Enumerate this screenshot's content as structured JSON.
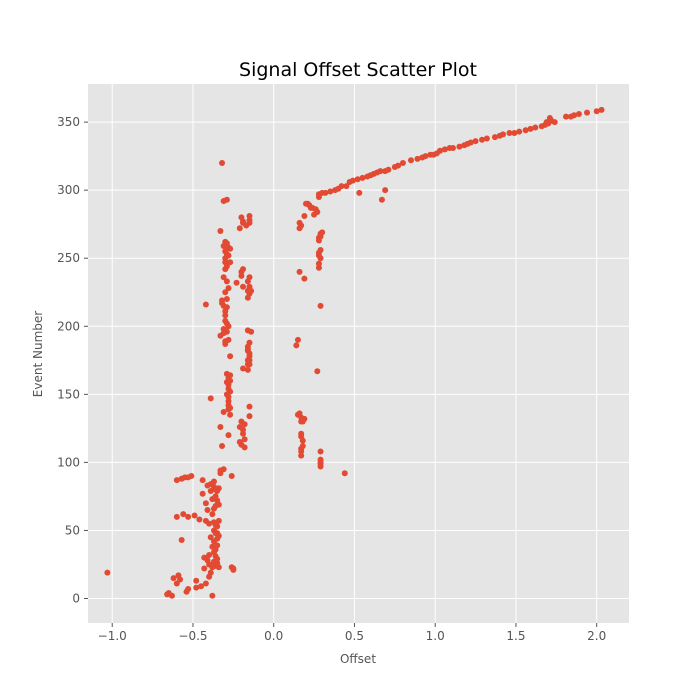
{
  "chart_data": {
    "type": "scatter",
    "title": "Signal Offset Scatter Plot",
    "xlabel": "Offset",
    "ylabel": "Event Number",
    "xlim": [
      -1.15,
      2.2
    ],
    "ylim": [
      -18,
      378
    ],
    "xticks": [
      -1.0,
      -0.5,
      0.0,
      0.5,
      1.0,
      1.5,
      2.0
    ],
    "xtick_labels": [
      "−1.0",
      "−0.5",
      "0.0",
      "0.5",
      "1.0",
      "1.5",
      "2.0"
    ],
    "yticks": [
      0,
      50,
      100,
      150,
      200,
      250,
      300,
      350
    ],
    "ytick_labels": [
      "0",
      "50",
      "100",
      "150",
      "200",
      "250",
      "300",
      "350"
    ],
    "grid": true,
    "style": "ggplot",
    "colors": {
      "background": "#e5e5e5",
      "grid": "#ffffff",
      "marker": "#e24a33"
    },
    "series": [
      {
        "points": [
          [
            -1.03,
            19
          ],
          [
            -0.66,
            3
          ],
          [
            -0.65,
            4
          ],
          [
            -0.63,
            2
          ],
          [
            -0.62,
            15
          ],
          [
            -0.6,
            11
          ],
          [
            -0.6,
            60
          ],
          [
            -0.6,
            87
          ],
          [
            -0.59,
            17
          ],
          [
            -0.58,
            14
          ],
          [
            -0.57,
            43
          ],
          [
            -0.57,
            88
          ],
          [
            -0.56,
            62
          ],
          [
            -0.55,
            89
          ],
          [
            -0.54,
            5
          ],
          [
            -0.53,
            7
          ],
          [
            -0.53,
            60
          ],
          [
            -0.53,
            89
          ],
          [
            -0.51,
            90
          ],
          [
            -0.49,
            61
          ],
          [
            -0.48,
            8
          ],
          [
            -0.48,
            13
          ],
          [
            -0.46,
            58
          ],
          [
            -0.45,
            9
          ],
          [
            -0.44,
            87
          ],
          [
            -0.44,
            77
          ],
          [
            -0.43,
            22
          ],
          [
            -0.43,
            30
          ],
          [
            -0.42,
            216
          ],
          [
            -0.42,
            57
          ],
          [
            -0.42,
            70
          ],
          [
            -0.42,
            11
          ],
          [
            -0.41,
            28
          ],
          [
            -0.41,
            83
          ],
          [
            -0.41,
            65
          ],
          [
            -0.4,
            25
          ],
          [
            -0.4,
            16
          ],
          [
            -0.4,
            55
          ],
          [
            -0.4,
            32
          ],
          [
            -0.39,
            147
          ],
          [
            -0.39,
            84
          ],
          [
            -0.39,
            45
          ],
          [
            -0.39,
            79
          ],
          [
            -0.39,
            19
          ],
          [
            -0.38,
            38
          ],
          [
            -0.38,
            23
          ],
          [
            -0.38,
            73
          ],
          [
            -0.38,
            62
          ],
          [
            -0.38,
            2
          ],
          [
            -0.37,
            50
          ],
          [
            -0.37,
            82
          ],
          [
            -0.37,
            56
          ],
          [
            -0.37,
            86
          ],
          [
            -0.37,
            27
          ],
          [
            -0.37,
            42
          ],
          [
            -0.37,
            66
          ],
          [
            -0.37,
            34
          ],
          [
            -0.36,
            48
          ],
          [
            -0.36,
            75
          ],
          [
            -0.36,
            31
          ],
          [
            -0.36,
            54
          ],
          [
            -0.36,
            80
          ],
          [
            -0.36,
            24
          ],
          [
            -0.36,
            68
          ],
          [
            -0.36,
            36
          ],
          [
            -0.35,
            26
          ],
          [
            -0.35,
            53
          ],
          [
            -0.35,
            79
          ],
          [
            -0.35,
            44
          ],
          [
            -0.35,
            72
          ],
          [
            -0.35,
            48
          ],
          [
            -0.35,
            29
          ],
          [
            -0.35,
            39
          ],
          [
            -0.34,
            46
          ],
          [
            -0.34,
            57
          ],
          [
            -0.34,
            23
          ],
          [
            -0.34,
            69
          ],
          [
            -0.34,
            81
          ],
          [
            -0.33,
            92
          ],
          [
            -0.33,
            94
          ],
          [
            -0.33,
            126
          ],
          [
            -0.33,
            193
          ],
          [
            -0.33,
            270
          ],
          [
            -0.32,
            320
          ],
          [
            -0.32,
            217
          ],
          [
            -0.32,
            112
          ],
          [
            -0.32,
            219
          ],
          [
            -0.31,
            95
          ],
          [
            -0.31,
            195
          ],
          [
            -0.31,
            236
          ],
          [
            -0.31,
            292
          ],
          [
            -0.31,
            259
          ],
          [
            -0.31,
            198
          ],
          [
            -0.31,
            215
          ],
          [
            -0.31,
            137
          ],
          [
            -0.3,
            247
          ],
          [
            -0.3,
            250
          ],
          [
            -0.3,
            204
          ],
          [
            -0.3,
            242
          ],
          [
            -0.3,
            255
          ],
          [
            -0.3,
            225
          ],
          [
            -0.3,
            262
          ],
          [
            -0.3,
            208
          ],
          [
            -0.3,
            211
          ],
          [
            -0.3,
            189
          ],
          [
            -0.3,
            187
          ],
          [
            -0.29,
            150
          ],
          [
            -0.29,
            159
          ],
          [
            -0.29,
            165
          ],
          [
            -0.29,
            293
          ],
          [
            -0.29,
            253
          ],
          [
            -0.29,
            244
          ],
          [
            -0.29,
            214
          ],
          [
            -0.29,
            202
          ],
          [
            -0.29,
            196
          ],
          [
            -0.29,
            233
          ],
          [
            -0.29,
            261
          ],
          [
            -0.29,
            220
          ],
          [
            -0.28,
            145
          ],
          [
            -0.28,
            162
          ],
          [
            -0.28,
            154
          ],
          [
            -0.28,
            139
          ],
          [
            -0.28,
            120
          ],
          [
            -0.28,
            157
          ],
          [
            -0.28,
            142
          ],
          [
            -0.28,
            148
          ],
          [
            -0.28,
            258
          ],
          [
            -0.28,
            228
          ],
          [
            -0.28,
            252
          ],
          [
            -0.28,
            200
          ],
          [
            -0.28,
            190
          ],
          [
            -0.27,
            164
          ],
          [
            -0.27,
            140
          ],
          [
            -0.27,
            152
          ],
          [
            -0.27,
            160
          ],
          [
            -0.27,
            247
          ],
          [
            -0.27,
            257
          ],
          [
            -0.27,
            135
          ],
          [
            -0.27,
            178
          ],
          [
            -0.26,
            90
          ],
          [
            -0.26,
            23
          ],
          [
            -0.25,
            22
          ],
          [
            -0.25,
            21
          ],
          [
            -0.23,
            232
          ],
          [
            -0.21,
            126
          ],
          [
            -0.21,
            115
          ],
          [
            -0.21,
            272
          ],
          [
            -0.2,
            130
          ],
          [
            -0.2,
            113
          ],
          [
            -0.2,
            280
          ],
          [
            -0.2,
            240
          ],
          [
            -0.2,
            237
          ],
          [
            -0.19,
            124
          ],
          [
            -0.19,
            242
          ],
          [
            -0.19,
            169
          ],
          [
            -0.19,
            229
          ],
          [
            -0.19,
            121
          ],
          [
            -0.19,
            276
          ],
          [
            -0.19,
            277
          ],
          [
            -0.18,
            117
          ],
          [
            -0.18,
            111
          ],
          [
            -0.18,
            128
          ],
          [
            -0.17,
            274
          ],
          [
            -0.16,
            233
          ],
          [
            -0.16,
            172
          ],
          [
            -0.16,
            175
          ],
          [
            -0.16,
            185
          ],
          [
            -0.16,
            226
          ],
          [
            -0.16,
            197
          ],
          [
            -0.16,
            183
          ],
          [
            -0.16,
            182
          ],
          [
            -0.16,
            221
          ],
          [
            -0.16,
            168
          ],
          [
            -0.15,
            141
          ],
          [
            -0.15,
            188
          ],
          [
            -0.15,
            178
          ],
          [
            -0.15,
            281
          ],
          [
            -0.15,
            278
          ],
          [
            -0.15,
            224
          ],
          [
            -0.15,
            276
          ],
          [
            -0.15,
            236
          ],
          [
            -0.15,
            180
          ],
          [
            -0.15,
            229
          ],
          [
            -0.15,
            134
          ],
          [
            -0.15,
            172
          ],
          [
            -0.15,
            175
          ],
          [
            -0.14,
            226
          ],
          [
            -0.14,
            196
          ],
          [
            0.14,
            186
          ],
          [
            0.15,
            190
          ],
          [
            0.15,
            135
          ],
          [
            0.16,
            136
          ],
          [
            0.16,
            272
          ],
          [
            0.16,
            276
          ],
          [
            0.16,
            240
          ],
          [
            0.17,
            133
          ],
          [
            0.17,
            130
          ],
          [
            0.17,
            108
          ],
          [
            0.17,
            121
          ],
          [
            0.17,
            105
          ],
          [
            0.17,
            119
          ],
          [
            0.17,
            274
          ],
          [
            0.17,
            110
          ],
          [
            0.18,
            130
          ],
          [
            0.18,
            116
          ],
          [
            0.18,
            112
          ],
          [
            0.19,
            281
          ],
          [
            0.19,
            235
          ],
          [
            0.19,
            132
          ],
          [
            0.2,
            290
          ],
          [
            0.21,
            290
          ],
          [
            0.22,
            289
          ],
          [
            0.23,
            287
          ],
          [
            0.24,
            287
          ],
          [
            0.25,
            282
          ],
          [
            0.26,
            286
          ],
          [
            0.27,
            284
          ],
          [
            0.27,
            167
          ],
          [
            0.28,
            297
          ],
          [
            0.28,
            295
          ],
          [
            0.28,
            243
          ],
          [
            0.28,
            263
          ],
          [
            0.28,
            252
          ],
          [
            0.28,
            246
          ],
          [
            0.28,
            254
          ],
          [
            0.28,
            265
          ],
          [
            0.29,
            268
          ],
          [
            0.29,
            266
          ],
          [
            0.29,
            102
          ],
          [
            0.29,
            256
          ],
          [
            0.29,
            250
          ],
          [
            0.29,
            215
          ],
          [
            0.29,
            108
          ],
          [
            0.29,
            97
          ],
          [
            0.29,
            99
          ],
          [
            0.29,
            100
          ],
          [
            0.3,
            269
          ],
          [
            0.3,
            298
          ],
          [
            0.32,
            298
          ],
          [
            0.35,
            299
          ],
          [
            0.38,
            300
          ],
          [
            0.4,
            301
          ],
          [
            0.42,
            303
          ],
          [
            0.44,
            92
          ],
          [
            0.45,
            303
          ],
          [
            0.47,
            306
          ],
          [
            0.49,
            307
          ],
          [
            0.52,
            308
          ],
          [
            0.53,
            298
          ],
          [
            0.55,
            309
          ],
          [
            0.58,
            310
          ],
          [
            0.6,
            311
          ],
          [
            0.62,
            312
          ],
          [
            0.64,
            313
          ],
          [
            0.66,
            314
          ],
          [
            0.67,
            293
          ],
          [
            0.69,
            300
          ],
          [
            0.69,
            314
          ],
          [
            0.71,
            315
          ],
          [
            0.75,
            317
          ],
          [
            0.77,
            318
          ],
          [
            0.8,
            320
          ],
          [
            0.85,
            322
          ],
          [
            0.89,
            323
          ],
          [
            0.92,
            324
          ],
          [
            0.94,
            325
          ],
          [
            0.97,
            326
          ],
          [
            0.99,
            326
          ],
          [
            1.01,
            327
          ],
          [
            1.03,
            329
          ],
          [
            1.06,
            330
          ],
          [
            1.09,
            331
          ],
          [
            1.11,
            331
          ],
          [
            1.15,
            332
          ],
          [
            1.18,
            333
          ],
          [
            1.2,
            334
          ],
          [
            1.22,
            335
          ],
          [
            1.25,
            336
          ],
          [
            1.29,
            337
          ],
          [
            1.32,
            338
          ],
          [
            1.37,
            339
          ],
          [
            1.4,
            340
          ],
          [
            1.42,
            341
          ],
          [
            1.46,
            342
          ],
          [
            1.49,
            342
          ],
          [
            1.52,
            343
          ],
          [
            1.56,
            344
          ],
          [
            1.59,
            345
          ],
          [
            1.62,
            346
          ],
          [
            1.66,
            347
          ],
          [
            1.68,
            348
          ],
          [
            1.69,
            350
          ],
          [
            1.7,
            349
          ],
          [
            1.71,
            353
          ],
          [
            1.72,
            351
          ],
          [
            1.74,
            350
          ],
          [
            1.81,
            354
          ],
          [
            1.84,
            354
          ],
          [
            1.86,
            355
          ],
          [
            1.89,
            356
          ],
          [
            1.94,
            357
          ],
          [
            2.0,
            358
          ],
          [
            2.03,
            359
          ]
        ]
      }
    ]
  }
}
